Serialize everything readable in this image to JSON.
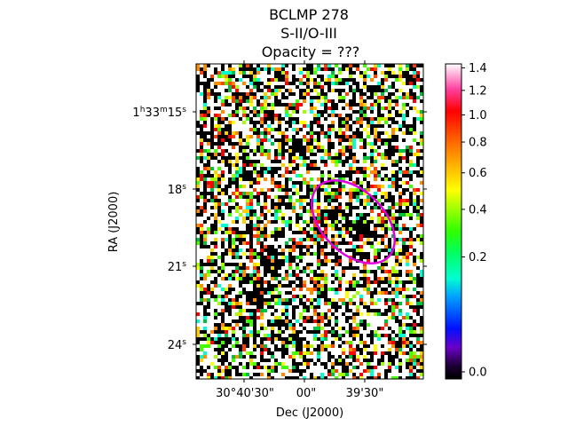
{
  "chart_data": {
    "type": "heatmap",
    "title_lines": [
      "BCLMP 278",
      "S-II/O-III",
      "Opacity = ???"
    ],
    "xlabel": "Dec (J2000)",
    "ylabel": "RA (J2000)",
    "x_ticks": [
      "30°40'30\"",
      "00\"",
      "39'30\""
    ],
    "y_ticks": [
      {
        "hour": "1",
        "min": "33",
        "sec": "15",
        "full": true
      },
      {
        "sec": "18"
      },
      {
        "sec": "21"
      },
      {
        "sec": "24"
      }
    ],
    "colorbar": {
      "colormap": "gist_ncar-like",
      "ticks": [
        0.0,
        0.2,
        0.4,
        0.6,
        0.8,
        1.0,
        1.2,
        1.4
      ],
      "tick_labels": [
        "0.0",
        "0.2",
        "0.4",
        "0.6",
        "0.8",
        "1.0",
        "1.2",
        "1.4"
      ],
      "range": [
        0.0,
        1.42
      ]
    },
    "annotations": [
      {
        "shape": "ellipse",
        "color": "#e000e0",
        "description": "region outline"
      }
    ]
  }
}
